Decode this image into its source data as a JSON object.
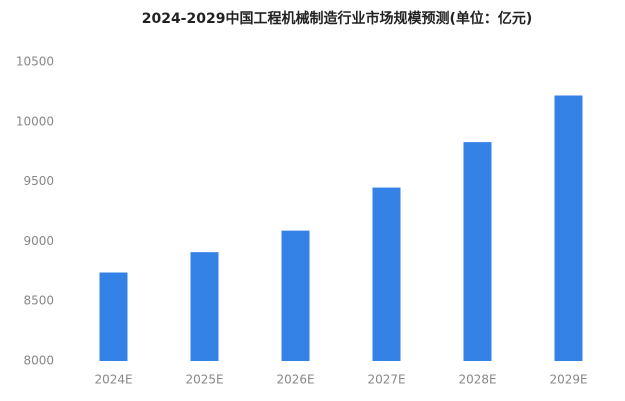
{
  "chart_data": {
    "type": "bar",
    "title": "2024-2029中国工程机械制造行业市场规模预测(单位：亿元)",
    "categories": [
      "2024E",
      "2025E",
      "2026E",
      "2027E",
      "2028E",
      "2029E"
    ],
    "values": [
      8740,
      8910,
      9090,
      9450,
      9830,
      10220
    ],
    "color": "#3582e6",
    "ylim": [
      8000,
      10500
    ],
    "yticks": [
      8000,
      8500,
      9000,
      9500,
      10000,
      10500
    ],
    "grid": false
  }
}
